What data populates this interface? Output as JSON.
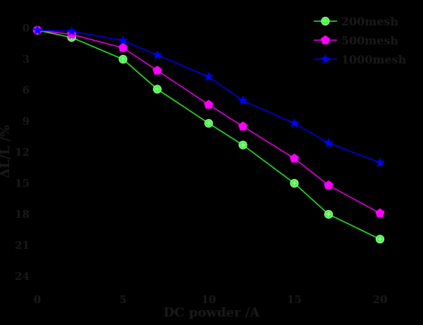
{
  "chart_data": {
    "type": "line",
    "x_label": "DC powder /A",
    "y_label": "ΔL/L /%",
    "x_ticks": [
      0,
      5,
      10,
      15,
      20
    ],
    "y_ticks": [
      0,
      3,
      6,
      9,
      12,
      15,
      18,
      21,
      24
    ],
    "xlim": [
      0,
      20
    ],
    "ylim": [
      0,
      24
    ],
    "y_inverted": true,
    "grid": false,
    "legend_position": "top-right",
    "background": "#000000",
    "series": [
      {
        "name": "200mesh",
        "color": "#33ff33",
        "marker": "circle",
        "x": [
          0,
          2,
          5,
          7,
          10,
          12,
          15,
          17,
          20
        ],
        "y": [
          0.2,
          0.9,
          3.0,
          5.9,
          9.2,
          11.3,
          15.0,
          18.0,
          20.4
        ]
      },
      {
        "name": "500mesh",
        "color": "#ff00ff",
        "marker": "pentagon",
        "x": [
          0,
          2,
          5,
          7,
          10,
          12,
          15,
          17,
          20
        ],
        "y": [
          0.2,
          0.6,
          1.9,
          4.1,
          7.4,
          9.5,
          12.6,
          15.2,
          17.9
        ]
      },
      {
        "name": "1000mesh",
        "color": "#0000ff",
        "marker": "star",
        "x": [
          0,
          2,
          5,
          7,
          10,
          12,
          15,
          17,
          20
        ],
        "y": [
          0.2,
          0.3,
          1.2,
          2.6,
          4.7,
          7.0,
          9.2,
          11.1,
          13.0
        ]
      }
    ]
  }
}
